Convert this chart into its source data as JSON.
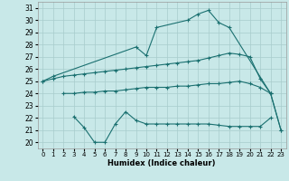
{
  "bg_color": "#c8e8e8",
  "grid_color": "#a8cccc",
  "line_color": "#1a7070",
  "xlabel": "Humidex (Indice chaleur)",
  "ylim": [
    19.5,
    31.5
  ],
  "xlim": [
    -0.5,
    23.5
  ],
  "yticks": [
    20,
    21,
    22,
    23,
    24,
    25,
    26,
    27,
    28,
    29,
    30,
    31
  ],
  "xticks": [
    0,
    1,
    2,
    3,
    4,
    5,
    6,
    7,
    8,
    9,
    10,
    11,
    12,
    13,
    14,
    15,
    16,
    17,
    18,
    19,
    20,
    21,
    22,
    23
  ],
  "line1_x": [
    0,
    1,
    9,
    10,
    11,
    14,
    15,
    16,
    17,
    18,
    22,
    23
  ],
  "line1_y": [
    25.0,
    25.4,
    27.8,
    27.1,
    29.4,
    30.0,
    30.5,
    30.8,
    29.8,
    29.4,
    24.0,
    21.0
  ],
  "line2_x": [
    0,
    1,
    2,
    3,
    4,
    5,
    6,
    7,
    8,
    9,
    10,
    11,
    12,
    13,
    14,
    15,
    16,
    17,
    18,
    19,
    20,
    21,
    22
  ],
  "line2_y": [
    25.0,
    25.2,
    25.4,
    25.5,
    25.6,
    25.7,
    25.8,
    25.9,
    26.0,
    26.1,
    26.2,
    26.3,
    26.4,
    26.5,
    26.6,
    26.7,
    26.9,
    27.1,
    27.3,
    27.2,
    27.0,
    25.2,
    24.0
  ],
  "line3_x": [
    2,
    3,
    4,
    5,
    6,
    7,
    8,
    9,
    10,
    11,
    12,
    13,
    14,
    15,
    16,
    17,
    18,
    19,
    20,
    21,
    22,
    23
  ],
  "line3_y": [
    24.0,
    24.0,
    24.1,
    24.1,
    24.2,
    24.2,
    24.3,
    24.4,
    24.5,
    24.5,
    24.5,
    24.6,
    24.6,
    24.7,
    24.8,
    24.8,
    24.9,
    25.0,
    24.8,
    24.5,
    24.0,
    21.0
  ],
  "line4_x": [
    3,
    4,
    5,
    6,
    7,
    8,
    9,
    10,
    11,
    12,
    13,
    14,
    15,
    16,
    17,
    18,
    19,
    20,
    21,
    22
  ],
  "line4_y": [
    22.1,
    21.2,
    20.0,
    20.0,
    21.5,
    22.5,
    21.8,
    21.5,
    21.5,
    21.5,
    21.5,
    21.5,
    21.5,
    21.5,
    21.4,
    21.3,
    21.3,
    21.3,
    21.3,
    22.0
  ],
  "figsize": [
    3.2,
    2.0
  ],
  "dpi": 100
}
